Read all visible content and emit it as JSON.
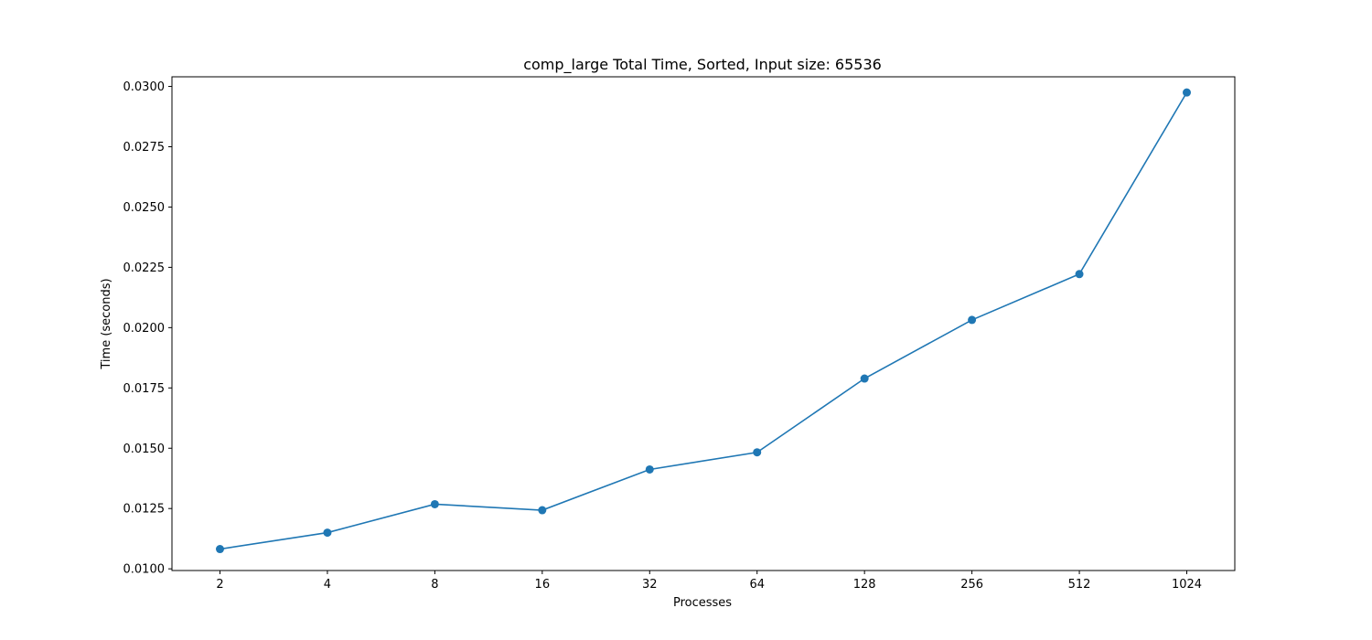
{
  "chart_data": {
    "type": "line",
    "title": "comp_large Total Time, Sorted, Input size: 65536",
    "xlabel": "Processes",
    "ylabel": "Time (seconds)",
    "categories": [
      "2",
      "4",
      "8",
      "16",
      "32",
      "64",
      "128",
      "256",
      "512",
      "1024"
    ],
    "series": [
      {
        "values": [
          0.01082,
          0.0115,
          0.01268,
          0.01243,
          0.01412,
          0.01483,
          0.01789,
          0.02032,
          0.02222,
          0.02975
        ],
        "color": "#1f77b4",
        "marker": "circle"
      }
    ],
    "yticks": [
      "0.0100",
      "0.0125",
      "0.0150",
      "0.0175",
      "0.0200",
      "0.0225",
      "0.0250",
      "0.0275",
      "0.0300"
    ],
    "ylim": [
      0.00993,
      0.0304
    ],
    "grid": false,
    "legend": "none"
  }
}
